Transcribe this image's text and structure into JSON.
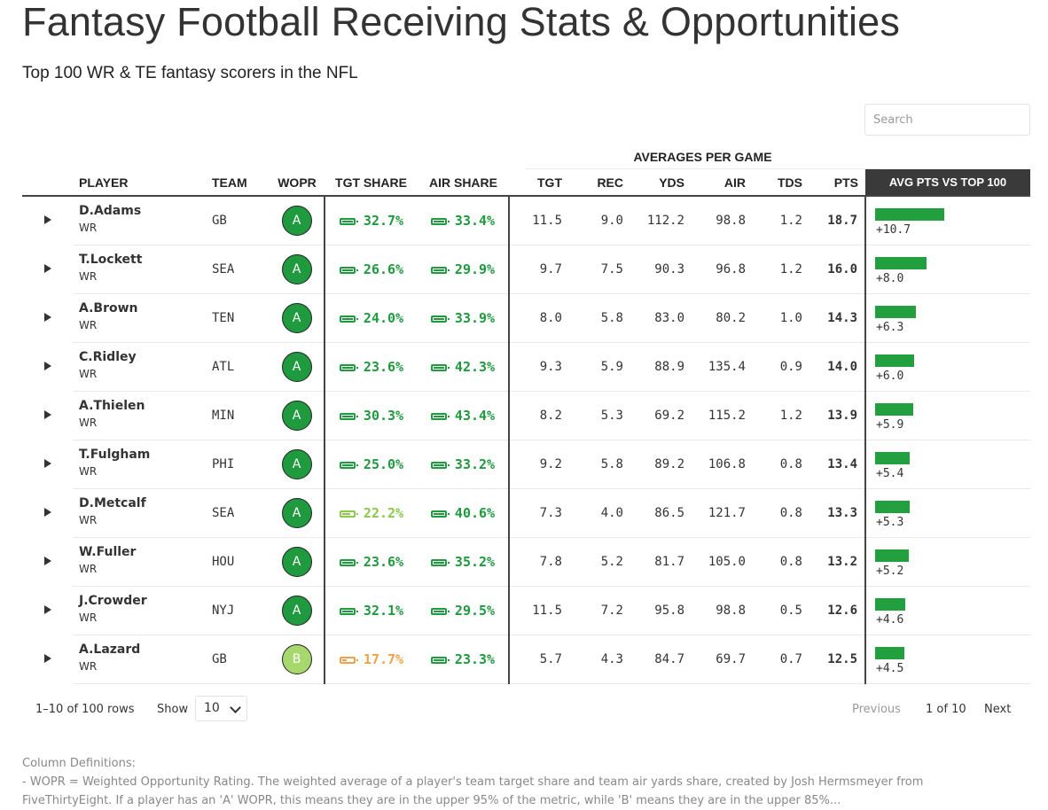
{
  "page": {
    "title": "Fantasy Football Receiving Stats & Opportunities",
    "subtitle": "Top 100 WR & TE fantasy scorers in the NFL"
  },
  "search": {
    "placeholder": "Search"
  },
  "table": {
    "group_header": "AVERAGES PER GAME",
    "columns": {
      "player": "PLAYER",
      "team": "TEAM",
      "wopr": "WOPR",
      "tgt_share": "TGT SHARE",
      "air_share": "AIR SHARE",
      "tgt": "TGT",
      "rec": "REC",
      "yds": "YDS",
      "air": "AIR",
      "tds": "TDS",
      "pts": "PTS",
      "avg_vs_top100": "AVG PTS VS TOP 100"
    },
    "rows": [
      {
        "name": "D.Adams",
        "pos": "WR",
        "team": "GB",
        "wopr": "A",
        "tgt_share": "32.7%",
        "air_share": "33.4%",
        "tgt": "11.5",
        "rec": "9.0",
        "yds": "112.2",
        "air": "98.8",
        "tds": "1.2",
        "pts": "18.7",
        "avg_vs": "+10.7"
      },
      {
        "name": "T.Lockett",
        "pos": "WR",
        "team": "SEA",
        "wopr": "A",
        "tgt_share": "26.6%",
        "air_share": "29.9%",
        "tgt": "9.7",
        "rec": "7.5",
        "yds": "90.3",
        "air": "96.8",
        "tds": "1.2",
        "pts": "16.0",
        "avg_vs": "+8.0"
      },
      {
        "name": "A.Brown",
        "pos": "WR",
        "team": "TEN",
        "wopr": "A",
        "tgt_share": "24.0%",
        "air_share": "33.9%",
        "tgt": "8.0",
        "rec": "5.8",
        "yds": "83.0",
        "air": "80.2",
        "tds": "1.0",
        "pts": "14.3",
        "avg_vs": "+6.3"
      },
      {
        "name": "C.Ridley",
        "pos": "WR",
        "team": "ATL",
        "wopr": "A",
        "tgt_share": "23.6%",
        "air_share": "42.3%",
        "tgt": "9.3",
        "rec": "5.9",
        "yds": "88.9",
        "air": "135.4",
        "tds": "0.9",
        "pts": "14.0",
        "avg_vs": "+6.0"
      },
      {
        "name": "A.Thielen",
        "pos": "WR",
        "team": "MIN",
        "wopr": "A",
        "tgt_share": "30.3%",
        "air_share": "43.4%",
        "tgt": "8.2",
        "rec": "5.3",
        "yds": "69.2",
        "air": "115.2",
        "tds": "1.2",
        "pts": "13.9",
        "avg_vs": "+5.9"
      },
      {
        "name": "T.Fulgham",
        "pos": "WR",
        "team": "PHI",
        "wopr": "A",
        "tgt_share": "25.0%",
        "air_share": "33.2%",
        "tgt": "9.2",
        "rec": "5.8",
        "yds": "89.2",
        "air": "106.8",
        "tds": "0.8",
        "pts": "13.4",
        "avg_vs": "+5.4"
      },
      {
        "name": "D.Metcalf",
        "pos": "WR",
        "team": "SEA",
        "wopr": "A",
        "tgt_share": "22.2%",
        "air_share": "40.6%",
        "tgt": "7.3",
        "rec": "4.0",
        "yds": "86.5",
        "air": "121.7",
        "tds": "0.8",
        "pts": "13.3",
        "avg_vs": "+5.3"
      },
      {
        "name": "W.Fuller",
        "pos": "WR",
        "team": "HOU",
        "wopr": "A",
        "tgt_share": "23.6%",
        "air_share": "35.2%",
        "tgt": "7.8",
        "rec": "5.2",
        "yds": "81.7",
        "air": "105.0",
        "tds": "0.8",
        "pts": "13.2",
        "avg_vs": "+5.2"
      },
      {
        "name": "J.Crowder",
        "pos": "WR",
        "team": "NYJ",
        "wopr": "A",
        "tgt_share": "32.1%",
        "air_share": "29.5%",
        "tgt": "11.5",
        "rec": "7.2",
        "yds": "95.8",
        "air": "98.8",
        "tds": "0.5",
        "pts": "12.6",
        "avg_vs": "+4.6"
      },
      {
        "name": "A.Lazard",
        "pos": "WR",
        "team": "GB",
        "wopr": "B",
        "tgt_share": "17.7%",
        "air_share": "23.3%",
        "tgt": "5.7",
        "rec": "4.3",
        "yds": "84.7",
        "air": "69.7",
        "tds": "0.7",
        "pts": "12.5",
        "avg_vs": "+4.5"
      }
    ]
  },
  "pagination": {
    "row_info": "1–10 of 100 rows",
    "show_label": "Show",
    "page_size": "10",
    "previous": "Previous",
    "page_info": "1 of 10",
    "next": "Next"
  },
  "definitions": {
    "heading": "Column Definitions:",
    "line1": "- WOPR = Weighted Opportunity Rating. The weighted average of a player's team target share and team air yards share, created by Josh Hermsmeyer from",
    "line2": "FiveThirtyEight. If a player has an 'A' WOPR, this means they are in the upper 95% of the metric, while 'B' means they are in the upper 85%..."
  },
  "colors": {
    "grade_a": "#1f9a3e",
    "grade_b": "#a6d86e",
    "share_high": "#1f9a3e",
    "share_mid": "#8cc84b",
    "share_low": "#f0a24a",
    "avg_bar": "#22a040",
    "avg_header_bg": "#3a3a3a"
  },
  "icons": {
    "expand": "triangle-right-icon",
    "share": "battery-icon",
    "select": "chevron-down-icon"
  }
}
